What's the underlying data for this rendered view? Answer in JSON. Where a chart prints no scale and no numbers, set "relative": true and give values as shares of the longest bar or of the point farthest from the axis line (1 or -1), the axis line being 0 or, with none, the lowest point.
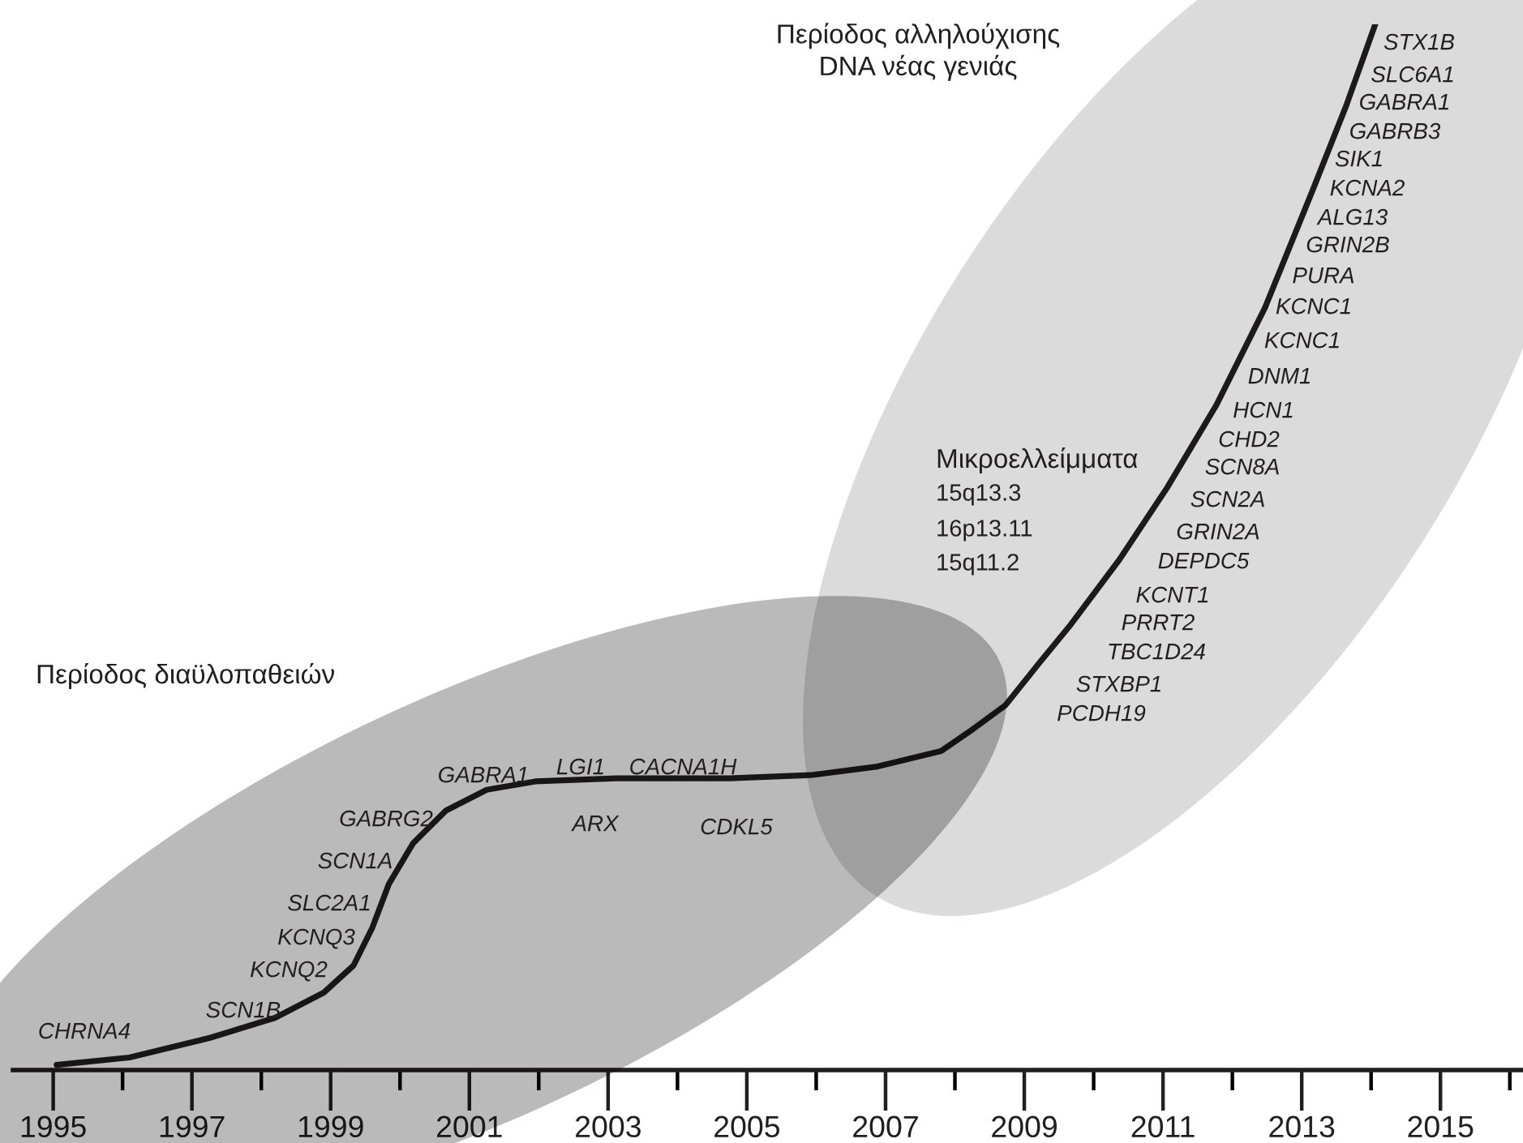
{
  "chart_data": {
    "type": "line",
    "relative": true,
    "marker": "none",
    "line_style": "solid",
    "grid": false,
    "legend": false,
    "tick_labels": "x",
    "xlim": [
      1994.42,
      2016.19
    ],
    "xticks": [
      1995,
      {
        "value": 1996,
        "label": null
      },
      1997,
      {
        "value": 1998,
        "label": null
      },
      1999,
      {
        "value": 2000,
        "label": null
      },
      2001,
      {
        "value": 2002,
        "label": null
      },
      2003,
      {
        "value": 2004,
        "label": null
      },
      2005,
      {
        "value": 2006,
        "label": null
      },
      2007,
      {
        "value": 2008,
        "label": null
      },
      2009,
      {
        "value": 2010,
        "label": null
      },
      2011,
      {
        "value": 2012,
        "label": null
      },
      2013,
      {
        "value": 2014,
        "label": null
      },
      2015,
      {
        "value": 2016,
        "label": null
      }
    ],
    "series": [
      {
        "color": "#231f20",
        "x": [
          1995.05,
          1996.1,
          1997.27,
          1998.2,
          1998.9,
          1999.33,
          1999.6,
          1999.84,
          2000.19,
          2000.66,
          2001.25,
          2001.95,
          2003.12,
          2004.75,
          2005.92,
          2006.86,
          2007.8,
          2008.26,
          2008.73,
          2009.2,
          2009.67,
          2010.37,
          2011.07,
          2011.77,
          2012.47,
          2013.18,
          2013.64,
          2014.06
        ],
        "values": [
          0.005,
          0.012,
          0.031,
          0.05,
          0.074,
          0.1,
          0.136,
          0.178,
          0.217,
          0.248,
          0.268,
          0.276,
          0.279,
          0.279,
          0.282,
          0.29,
          0.305,
          0.326,
          0.349,
          0.388,
          0.426,
          0.488,
          0.558,
          0.636,
          0.729,
          0.845,
          0.922,
          1.0
        ]
      }
    ],
    "annotations": [
      "Περίοδος διαϋλοπαθειών",
      "Περίοδος αλληλούχισης\nDNA νέας γενιάς",
      "Μικροελλείμματα",
      "15q13.3",
      "16p13.11",
      "15q11.2",
      "CHRNA4",
      "SCN1B",
      "KCNQ2",
      "KCNQ3",
      "SLC2A1",
      "SCN1A",
      "GABRG2",
      "GABRA1",
      "LGI1",
      "CACNA1H",
      "ARX",
      "CDKL5",
      "PCDH19",
      "STXBP1",
      "TBC1D24",
      "PRRT2",
      "KCNT1",
      "DEPDC5",
      "GRIN2A",
      "SCN2A",
      "SCN8A",
      "CHD2",
      "HCN1",
      "DNM1",
      "KCNC1",
      "KCNC1",
      "PURA",
      "GRIN2B",
      "ALG13",
      "KCNA2",
      "SIK1",
      "GABRB3",
      "GABRA1",
      "SLC6A1",
      "STX1B"
    ]
  }
}
